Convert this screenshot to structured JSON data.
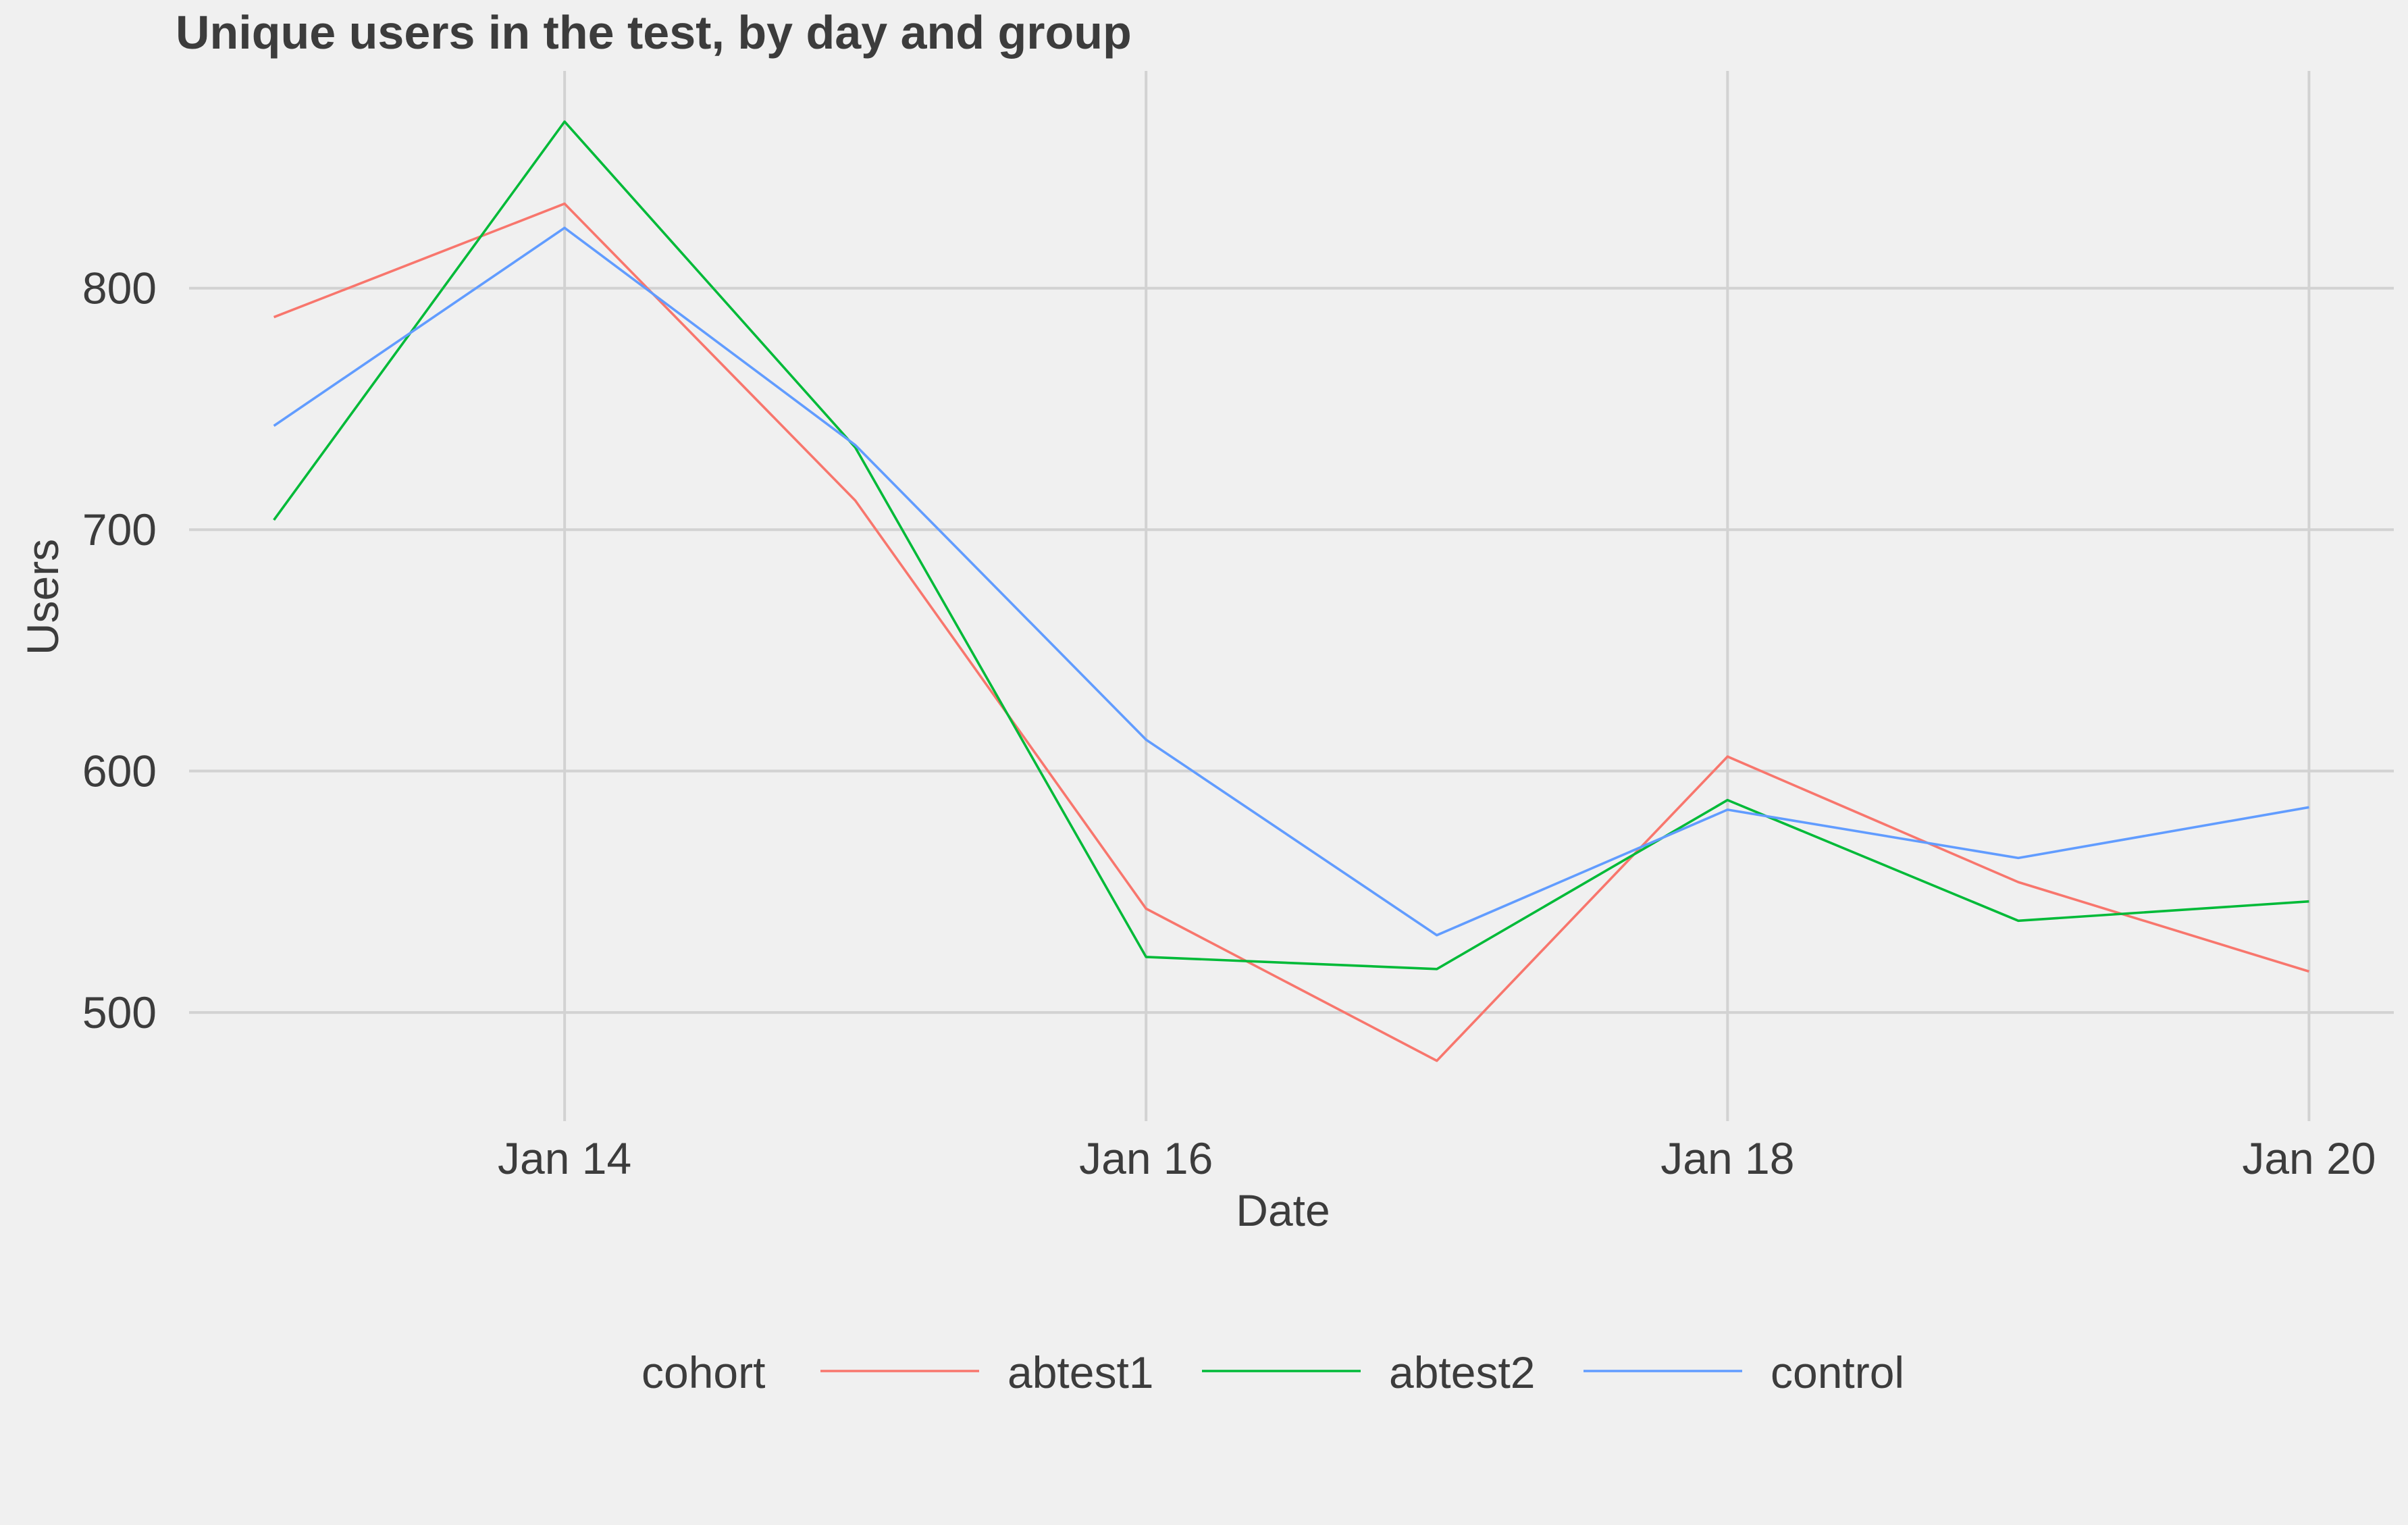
{
  "chart_data": {
    "type": "line",
    "title": "Unique users in the test, by day and group",
    "xlabel": "Date",
    "ylabel": "Users",
    "x": [
      "2023-01-13",
      "2023-01-14",
      "2023-01-15",
      "2023-01-16",
      "2023-01-17",
      "2023-01-18",
      "2023-01-19",
      "2023-01-20"
    ],
    "xlim": [
      "2023-01-12 17:00",
      "2023-01-20 07:00"
    ],
    "ylim": [
      455,
      890
    ],
    "x_ticks": [
      {
        "date": "2023-01-14",
        "label": "Jan 14"
      },
      {
        "date": "2023-01-16",
        "label": "Jan 16"
      },
      {
        "date": "2023-01-18",
        "label": "Jan 18"
      },
      {
        "date": "2023-01-20",
        "label": "Jan 20"
      }
    ],
    "y_ticks": [
      500,
      600,
      700,
      800
    ],
    "grid": true,
    "legend": {
      "title": "cohort",
      "position": "bottom"
    },
    "series": [
      {
        "name": "abtest1",
        "color": "#F8766D",
        "values": [
          788,
          835,
          712,
          543,
          480,
          606,
          554,
          517
        ]
      },
      {
        "name": "abtest2",
        "color": "#00BA38",
        "values": [
          704,
          869,
          734,
          523,
          518,
          588,
          538,
          546
        ]
      },
      {
        "name": "control",
        "color": "#619CFF",
        "values": [
          743,
          825,
          735,
          613,
          532,
          584,
          564,
          585
        ]
      }
    ]
  }
}
